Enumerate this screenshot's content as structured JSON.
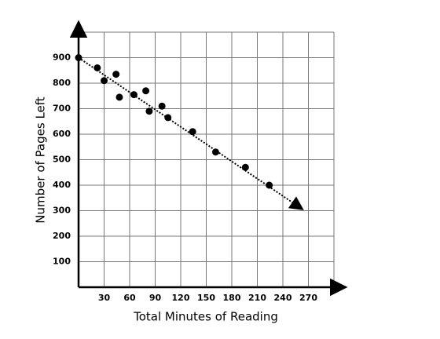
{
  "chart_data": {
    "type": "scatter",
    "xlabel": "Total Minutes of Reading",
    "ylabel": "Number of Pages Left",
    "x": [
      0,
      22,
      30,
      44,
      48,
      65,
      79,
      83,
      98,
      105,
      134,
      161,
      196,
      224
    ],
    "values": [
      900,
      860,
      810,
      835,
      745,
      755,
      770,
      690,
      710,
      665,
      610,
      530,
      470,
      400
    ],
    "color": "#000000",
    "trend_line": {
      "x": [
        0,
        262
      ],
      "y": [
        900,
        308
      ]
    },
    "xlim": [
      0,
      300
    ],
    "ylim": [
      0,
      1000
    ],
    "xticks": [
      30,
      60,
      90,
      120,
      150,
      180,
      210,
      240,
      270
    ],
    "yticks": [
      100,
      200,
      300,
      400,
      500,
      600,
      700,
      800,
      900
    ],
    "grid": true
  }
}
